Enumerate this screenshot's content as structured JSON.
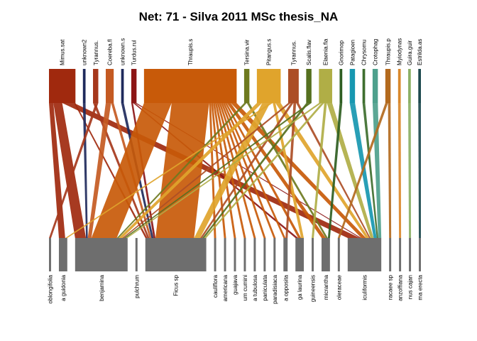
{
  "chart_data": {
    "type": "bipartite-web",
    "title": "Net: 71 - Silva 2011 MSc thesis_NA",
    "higher_level": [
      {
        "label": "Mimus.sat",
        "color": "#A0290E",
        "weight": 10
      },
      {
        "label": "unknown2",
        "color": "#1F2A5C",
        "weight": 1
      },
      {
        "label": "Tyrannus.",
        "color": "#A6381C",
        "weight": 2
      },
      {
        "label": "Coereba.fl",
        "color": "#C45A22",
        "weight": 3
      },
      {
        "label": "unknown.s",
        "color": "#1F2A5C",
        "weight": 1
      },
      {
        "label": "Turdus.rul",
        "color": "#8C1616",
        "weight": 2
      },
      {
        "label": "Thraupis.s",
        "color": "#C85A09",
        "weight": 35
      },
      {
        "label": "Tersina.vir",
        "color": "#6E7A1F",
        "weight": 2
      },
      {
        "label": "Pitangus.s",
        "color": "#E0A42C",
        "weight": 9
      },
      {
        "label": "Tyrannus.",
        "color": "#AC4E26",
        "weight": 4
      },
      {
        "label": "Scalis.flav",
        "color": "#55701F",
        "weight": 2
      },
      {
        "label": "Elaenia.fla",
        "color": "#B0AE46",
        "weight": 5
      },
      {
        "label": "Gnorimop",
        "color": "#2F5E22",
        "weight": 1
      },
      {
        "label": "Patagioen",
        "color": "#1797B0",
        "weight": 2
      },
      {
        "label": "Chrysomu",
        "color": "#3E6E2E",
        "weight": 1
      },
      {
        "label": "Crotophag",
        "color": "#4EA08C",
        "weight": 2
      },
      {
        "label": "Thraupis.p",
        "color": "#B36A1E",
        "weight": 2
      },
      {
        "label": "Myiodynas",
        "color": "#D9882B",
        "weight": 1
      },
      {
        "label": "Guira.guir",
        "color": "#8BAF65",
        "weight": 1
      },
      {
        "label": "Estrilda.as",
        "color": "#1D4A4E",
        "weight": 1
      }
    ],
    "lower_level": [
      {
        "label": "oblongifolia",
        "weight": 1
      },
      {
        "label": "a guidonia",
        "weight": 4
      },
      {
        "label": "benjamina",
        "weight": 25
      },
      {
        "label": "pulchrum",
        "weight": 1
      },
      {
        "label": "Ficus sp",
        "weight": 29
      },
      {
        "label": "cauliflora",
        "weight": 1
      },
      {
        "label": "americana",
        "weight": 1
      },
      {
        "label": "guajava",
        "weight": 1
      },
      {
        "label": "um cumini",
        "weight": 1
      },
      {
        "label": "a tubulosa",
        "weight": 1
      },
      {
        "label": "paniculata",
        "weight": 1
      },
      {
        "label": "paradisiaca",
        "weight": 1
      },
      {
        "label": "a opposita",
        "weight": 2
      },
      {
        "label": "ga laurina",
        "weight": 4
      },
      {
        "label": "guineensis",
        "weight": 1
      },
      {
        "label": "micrantha",
        "weight": 4
      },
      {
        "label": "oleraceae",
        "weight": 1
      },
      {
        "label": "iculiformis",
        "weight": 16
      },
      {
        "label": "racaee sp",
        "weight": 1
      },
      {
        "label": "anzoffiana",
        "weight": 1
      },
      {
        "label": "nus cajan",
        "weight": 1
      },
      {
        "label": "ma erecta",
        "weight": 1
      }
    ],
    "links": [
      [
        0,
        1,
        3
      ],
      [
        0,
        2,
        6
      ],
      [
        0,
        17,
        8
      ],
      [
        0,
        4,
        1
      ],
      [
        1,
        2,
        1
      ],
      [
        2,
        4,
        1
      ],
      [
        2,
        0,
        1
      ],
      [
        3,
        2,
        2
      ],
      [
        3,
        4,
        1
      ],
      [
        4,
        4,
        1
      ],
      [
        5,
        4,
        1
      ],
      [
        5,
        13,
        1
      ],
      [
        5,
        17,
        1
      ],
      [
        6,
        2,
        14
      ],
      [
        6,
        4,
        19
      ],
      [
        6,
        5,
        1
      ],
      [
        6,
        6,
        1
      ],
      [
        6,
        7,
        1
      ],
      [
        6,
        8,
        1
      ],
      [
        6,
        9,
        1
      ],
      [
        6,
        10,
        1
      ],
      [
        6,
        11,
        1
      ],
      [
        6,
        12,
        1
      ],
      [
        6,
        13,
        1
      ],
      [
        6,
        15,
        2
      ],
      [
        6,
        17,
        3
      ],
      [
        7,
        2,
        1
      ],
      [
        7,
        15,
        1
      ],
      [
        8,
        2,
        2
      ],
      [
        8,
        4,
        3
      ],
      [
        8,
        1,
        1
      ],
      [
        8,
        13,
        1
      ],
      [
        8,
        17,
        2
      ],
      [
        9,
        2,
        1
      ],
      [
        9,
        4,
        1
      ],
      [
        9,
        12,
        1
      ],
      [
        9,
        17,
        1
      ],
      [
        10,
        4,
        1
      ],
      [
        10,
        2,
        1
      ],
      [
        11,
        2,
        1
      ],
      [
        11,
        4,
        1
      ],
      [
        11,
        14,
        1
      ],
      [
        11,
        17,
        2
      ],
      [
        12,
        15,
        1
      ],
      [
        13,
        17,
        2
      ],
      [
        14,
        17,
        1
      ],
      [
        15,
        17,
        2
      ],
      [
        16,
        16,
        1
      ],
      [
        16,
        18,
        1
      ],
      [
        17,
        19,
        1
      ],
      [
        18,
        20,
        1
      ],
      [
        19,
        21,
        1
      ]
    ]
  }
}
